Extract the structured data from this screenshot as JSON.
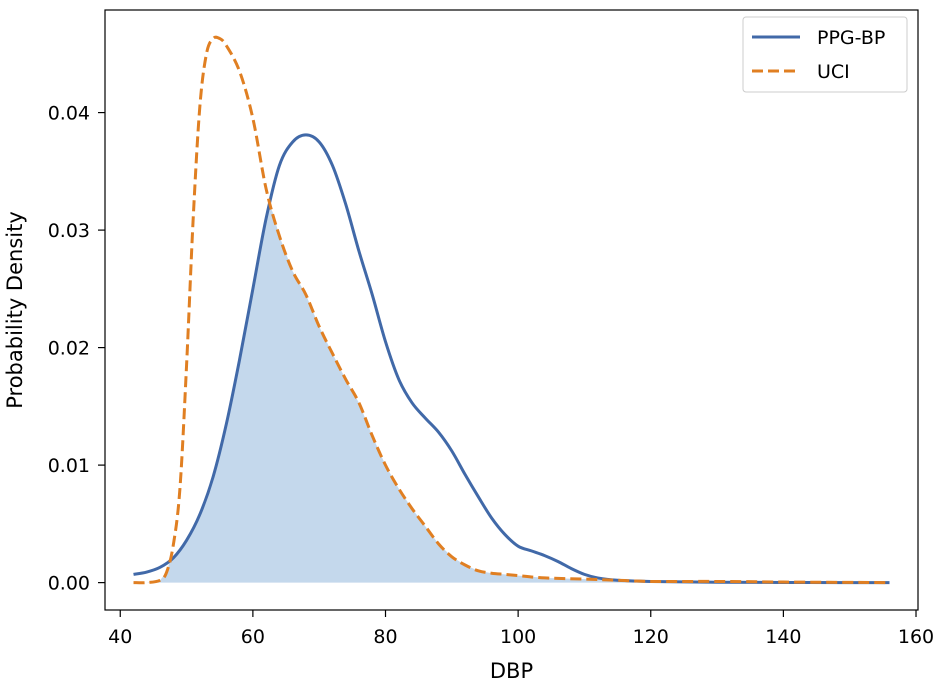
{
  "chart_data": {
    "type": "line",
    "title": "",
    "xlabel": "DBP",
    "ylabel": "Probability Density",
    "xlim": [
      37.7,
      160.3
    ],
    "ylim": [
      -0.00233,
      0.04873
    ],
    "x_ticks": [
      40,
      60,
      80,
      100,
      120,
      140,
      160
    ],
    "x_tick_labels": [
      "40",
      "60",
      "80",
      "100",
      "120",
      "140",
      "160"
    ],
    "y_ticks": [
      0.0,
      0.01,
      0.02,
      0.03,
      0.04
    ],
    "y_tick_labels": [
      "0.00",
      "0.01",
      "0.02",
      "0.03",
      "0.04"
    ],
    "grid": false,
    "legend_position": "top-right",
    "overlap_fill": {
      "description_color": "#c4d8ec"
    },
    "series": [
      {
        "name": "PPG-BP",
        "style": "solid",
        "color": "#4169a8",
        "x": [
          42,
          44,
          46,
          48,
          50,
          52,
          54,
          56,
          58,
          60,
          62,
          64,
          66,
          68,
          70,
          72,
          74,
          76,
          78,
          80,
          82,
          84,
          86,
          88,
          90,
          92,
          94,
          96,
          98,
          100,
          102,
          104,
          106,
          108,
          110,
          112,
          115,
          120,
          130,
          140,
          150,
          156
        ],
        "y": [
          0.0007,
          0.0009,
          0.0013,
          0.0021,
          0.0036,
          0.0058,
          0.009,
          0.0135,
          0.019,
          0.025,
          0.031,
          0.0355,
          0.0375,
          0.0381,
          0.0375,
          0.0355,
          0.0322,
          0.0282,
          0.0245,
          0.0205,
          0.0173,
          0.0153,
          0.014,
          0.0128,
          0.0112,
          0.0092,
          0.0073,
          0.0055,
          0.0041,
          0.0031,
          0.0027,
          0.0023,
          0.0018,
          0.0012,
          0.0007,
          0.0004,
          0.0002,
          0.0001,
          3e-05,
          1e-05,
          0.0,
          0.0
        ]
      },
      {
        "name": "UCI",
        "style": "dashed",
        "color": "#e07f22",
        "x": [
          42,
          44,
          46,
          47,
          48,
          49,
          50,
          51,
          52,
          53,
          54,
          55,
          56,
          58,
          60,
          62,
          64,
          66,
          68,
          70,
          72,
          74,
          76,
          78,
          80,
          82,
          84,
          86,
          88,
          90,
          92,
          94,
          96,
          98,
          100,
          104,
          110,
          115,
          120,
          130,
          140,
          150,
          156
        ],
        "y": [
          0.0,
          0.0,
          0.0002,
          0.0009,
          0.0032,
          0.008,
          0.0185,
          0.031,
          0.0405,
          0.045,
          0.0463,
          0.0463,
          0.0457,
          0.0435,
          0.0395,
          0.0335,
          0.0295,
          0.0265,
          0.0245,
          0.0218,
          0.0195,
          0.0173,
          0.0153,
          0.0125,
          0.01,
          0.008,
          0.0063,
          0.0048,
          0.0033,
          0.0022,
          0.0015,
          0.001,
          0.0008,
          0.0007,
          0.0006,
          0.0004,
          0.0003,
          0.0002,
          0.0001,
          0.0001,
          5e-05,
          2e-05,
          0.0
        ]
      }
    ]
  }
}
